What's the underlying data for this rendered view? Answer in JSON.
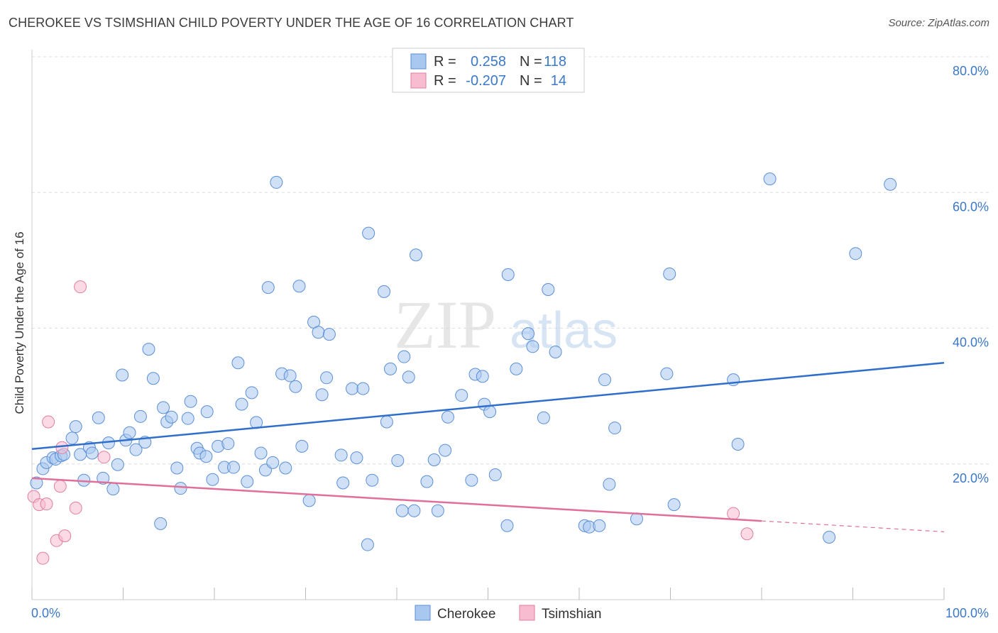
{
  "title": "CHEROKEE VS TSIMSHIAN CHILD POVERTY UNDER THE AGE OF 16 CORRELATION CHART",
  "source": "Source: ZipAtlas.com",
  "watermark": {
    "zip": "ZIP",
    "atlas": "atlas"
  },
  "legend": {
    "rows": [
      {
        "r_label": "R =",
        "r_value": "0.258",
        "n_label": "N =",
        "n_value": "118"
      },
      {
        "r_label": "R =",
        "r_value": "-0.207",
        "n_label": "N =",
        "n_value": "14"
      }
    ]
  },
  "bottom_legend": [
    "Cherokee",
    "Tsimshian"
  ],
  "colors": {
    "cherokee_fill": "#a9c8f0",
    "cherokee_stroke": "#5b8fd6",
    "cherokee_line": "#2f6fcb",
    "tsimshian_fill": "#f7bcd0",
    "tsimshian_stroke": "#e07ea0",
    "tsimshian_line": "#e0709a",
    "tick_label": "#3b78c8",
    "grid": "#dddddd"
  },
  "chart_data": {
    "type": "scatter",
    "title": "CHEROKEE VS TSIMSHIAN CHILD POVERTY UNDER THE AGE OF 16 CORRELATION CHART",
    "xlabel": "",
    "ylabel": "Child Poverty Under the Age of 16",
    "xlim": [
      0,
      100
    ],
    "ylim": [
      0,
      80
    ],
    "x_tick_labels": [
      "0.0%",
      "100.0%"
    ],
    "y_ticks": [
      20,
      40,
      60,
      80
    ],
    "y_tick_labels": [
      "20.0%",
      "40.0%",
      "60.0%",
      "80.0%"
    ],
    "grid": true,
    "legend_position": "top-center",
    "series": [
      {
        "name": "Cherokee",
        "r": 0.258,
        "n": 118,
        "trend": {
          "x": [
            0,
            100
          ],
          "y": [
            22.2,
            34.9
          ]
        },
        "points": [
          [
            0.5,
            17.2
          ],
          [
            1.2,
            19.3
          ],
          [
            1.6,
            20.2
          ],
          [
            2.3,
            20.9
          ],
          [
            2.6,
            20.7
          ],
          [
            3.2,
            21.2
          ],
          [
            3.5,
            21.4
          ],
          [
            4.4,
            23.8
          ],
          [
            4.8,
            25.5
          ],
          [
            5.3,
            21.4
          ],
          [
            5.7,
            17.6
          ],
          [
            6.3,
            22.4
          ],
          [
            6.6,
            21.6
          ],
          [
            7.3,
            26.8
          ],
          [
            7.8,
            17.9
          ],
          [
            8.4,
            23.1
          ],
          [
            8.9,
            16.3
          ],
          [
            9.4,
            19.9
          ],
          [
            9.9,
            33.1
          ],
          [
            10.3,
            23.5
          ],
          [
            10.7,
            24.6
          ],
          [
            11.4,
            22.1
          ],
          [
            11.9,
            27.0
          ],
          [
            12.4,
            23.2
          ],
          [
            12.8,
            36.9
          ],
          [
            13.3,
            32.6
          ],
          [
            14.1,
            11.2
          ],
          [
            14.4,
            28.3
          ],
          [
            14.8,
            26.2
          ],
          [
            15.3,
            26.9
          ],
          [
            15.9,
            19.4
          ],
          [
            16.3,
            16.4
          ],
          [
            17.1,
            26.7
          ],
          [
            17.4,
            29.2
          ],
          [
            18.1,
            22.3
          ],
          [
            18.4,
            21.6
          ],
          [
            19.1,
            21.1
          ],
          [
            19.2,
            27.7
          ],
          [
            19.8,
            17.7
          ],
          [
            20.4,
            22.6
          ],
          [
            21.1,
            19.5
          ],
          [
            21.5,
            23.0
          ],
          [
            22.1,
            19.5
          ],
          [
            22.6,
            34.9
          ],
          [
            23.0,
            28.8
          ],
          [
            23.6,
            17.4
          ],
          [
            24.1,
            30.5
          ],
          [
            24.6,
            26.1
          ],
          [
            25.1,
            21.6
          ],
          [
            25.6,
            19.1
          ],
          [
            25.9,
            46.0
          ],
          [
            26.4,
            20.2
          ],
          [
            26.8,
            61.5
          ],
          [
            27.4,
            33.3
          ],
          [
            27.8,
            19.4
          ],
          [
            28.3,
            33.0
          ],
          [
            28.9,
            31.4
          ],
          [
            29.3,
            46.2
          ],
          [
            29.6,
            22.6
          ],
          [
            30.4,
            14.6
          ],
          [
            30.9,
            40.9
          ],
          [
            31.4,
            39.4
          ],
          [
            31.8,
            30.2
          ],
          [
            32.3,
            32.7
          ],
          [
            32.6,
            39.1
          ],
          [
            33.9,
            21.3
          ],
          [
            34.1,
            17.2
          ],
          [
            35.1,
            31.1
          ],
          [
            35.6,
            20.9
          ],
          [
            36.3,
            31.1
          ],
          [
            36.8,
            8.1
          ],
          [
            36.9,
            54.0
          ],
          [
            37.3,
            17.6
          ],
          [
            38.6,
            45.4
          ],
          [
            38.9,
            26.2
          ],
          [
            39.3,
            34.0
          ],
          [
            40.1,
            20.5
          ],
          [
            40.6,
            13.1
          ],
          [
            40.8,
            35.8
          ],
          [
            41.3,
            32.8
          ],
          [
            41.9,
            13.1
          ],
          [
            42.1,
            50.8
          ],
          [
            43.3,
            17.4
          ],
          [
            44.1,
            20.6
          ],
          [
            44.5,
            13.1
          ],
          [
            45.3,
            22.0
          ],
          [
            45.6,
            26.9
          ],
          [
            47.1,
            30.1
          ],
          [
            48.2,
            17.6
          ],
          [
            48.6,
            33.2
          ],
          [
            49.4,
            32.9
          ],
          [
            49.6,
            28.8
          ],
          [
            50.2,
            27.7
          ],
          [
            50.8,
            18.4
          ],
          [
            52.1,
            10.9
          ],
          [
            52.2,
            47.9
          ],
          [
            53.1,
            34.0
          ],
          [
            54.4,
            39.2
          ],
          [
            54.9,
            37.3
          ],
          [
            56.1,
            26.8
          ],
          [
            56.6,
            45.7
          ],
          [
            57.4,
            36.5
          ],
          [
            60.6,
            10.9
          ],
          [
            61.1,
            10.7
          ],
          [
            62.2,
            10.9
          ],
          [
            62.8,
            32.4
          ],
          [
            63.3,
            17.0
          ],
          [
            63.9,
            25.3
          ],
          [
            66.3,
            11.9
          ],
          [
            69.6,
            33.3
          ],
          [
            69.9,
            48.0
          ],
          [
            70.4,
            14.0
          ],
          [
            76.9,
            32.4
          ],
          [
            77.4,
            22.9
          ],
          [
            87.4,
            9.2
          ],
          [
            90.3,
            51.0
          ],
          [
            94.1,
            61.2
          ],
          [
            80.9,
            62.0
          ]
        ]
      },
      {
        "name": "Tsimshian",
        "r": -0.207,
        "n": 14,
        "trend": {
          "x": [
            0,
            80
          ],
          "y": [
            17.9,
            11.6
          ]
        },
        "trend_dashed": {
          "x": [
            80,
            100
          ],
          "y": [
            11.6,
            10.0
          ]
        },
        "points": [
          [
            0.2,
            15.2
          ],
          [
            0.8,
            14.0
          ],
          [
            1.2,
            6.1
          ],
          [
            1.6,
            14.1
          ],
          [
            1.8,
            26.2
          ],
          [
            2.7,
            8.7
          ],
          [
            3.1,
            16.7
          ],
          [
            3.3,
            22.4
          ],
          [
            3.6,
            9.4
          ],
          [
            4.8,
            13.5
          ],
          [
            5.3,
            46.1
          ],
          [
            7.9,
            21.0
          ],
          [
            76.9,
            12.7
          ],
          [
            78.4,
            9.7
          ]
        ]
      }
    ]
  }
}
